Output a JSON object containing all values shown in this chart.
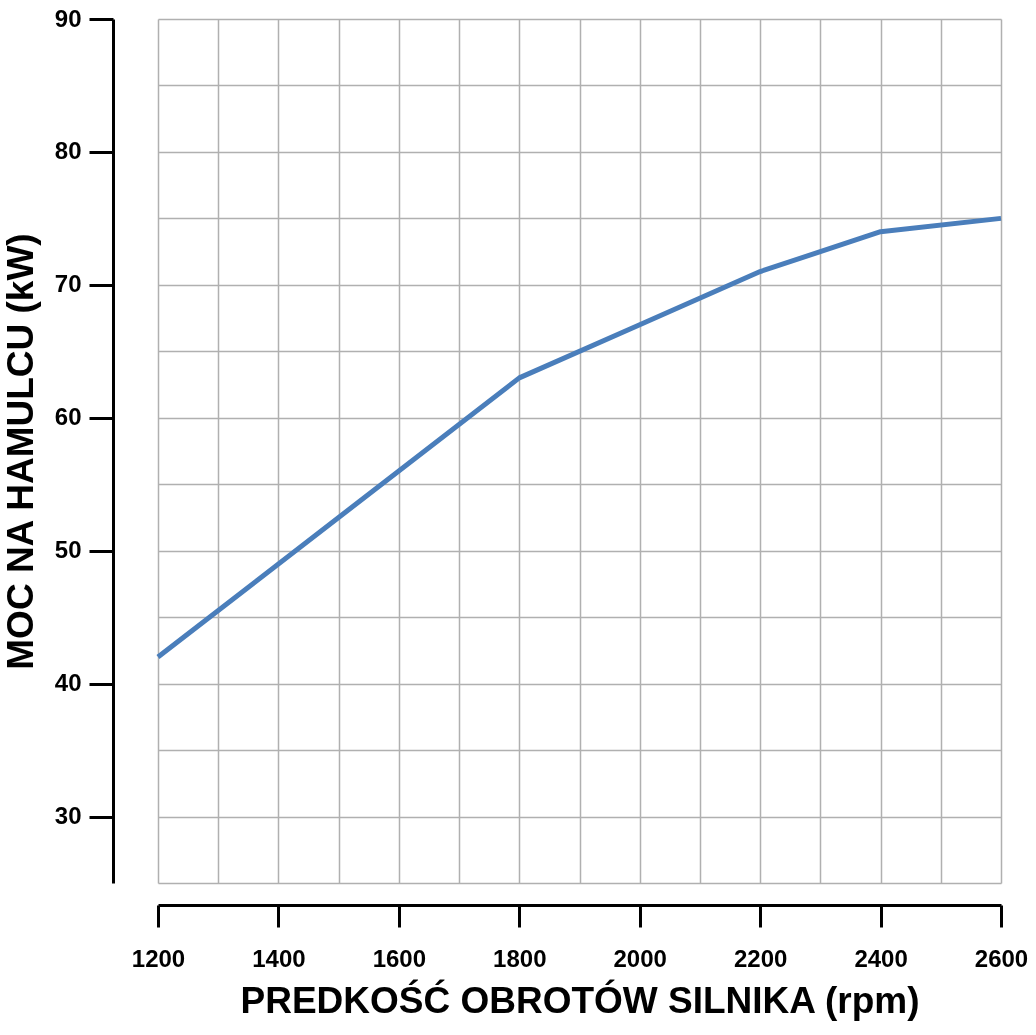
{
  "chart_data": {
    "type": "line",
    "xlabel": "PREDKOŚĆ OBROTÓW SILNIKA (rpm)",
    "ylabel": "MOC NA HAMULCU (kW)",
    "x": [
      1200,
      1800,
      2000,
      2200,
      2400,
      2600
    ],
    "series": [
      {
        "color": "#4a7ebb",
        "values": [
          42,
          63,
          67,
          71,
          74,
          75
        ]
      }
    ],
    "xlim": [
      1200,
      2600
    ],
    "xticks": [
      1200,
      1400,
      1600,
      1800,
      2000,
      2200,
      2400,
      2600
    ],
    "ylim": [
      25,
      90
    ],
    "yticks": [
      30,
      40,
      50,
      60,
      70,
      80,
      90
    ],
    "grid": true,
    "marker": "none",
    "line_style": "solid"
  }
}
